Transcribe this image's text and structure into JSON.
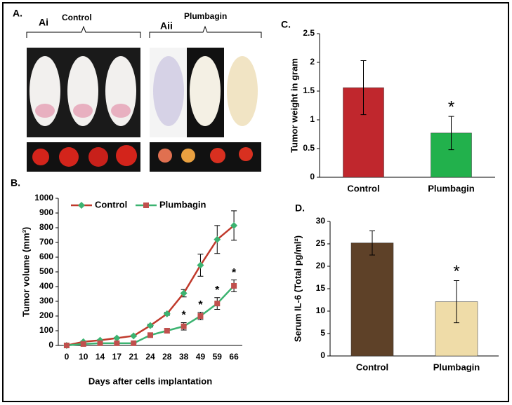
{
  "panel_a": {
    "label": "A.",
    "groups": [
      {
        "label": "Ai",
        "name": "Control"
      },
      {
        "label": "Aii",
        "name": "Plumbagin"
      }
    ]
  },
  "chart_data": [
    {
      "type": "line",
      "panel": "B.",
      "x_label": "Days after cells implantation",
      "y_label": "Tumor volume (mm³)",
      "categories": [
        "0",
        "10",
        "14",
        "17",
        "21",
        "24",
        "28",
        "38",
        "49",
        "59",
        "66"
      ],
      "series": [
        {
          "name": "Control",
          "color": "#c0392b",
          "marker_color": "#3cb371",
          "marker": "diamond",
          "values": [
            0,
            25,
            35,
            50,
            65,
            135,
            215,
            355,
            545,
            720,
            815
          ],
          "errors": [
            0,
            5,
            5,
            5,
            5,
            10,
            10,
            25,
            75,
            95,
            100
          ]
        },
        {
          "name": "Plumbagin",
          "color": "#3cb371",
          "marker_color": "#c0504d",
          "marker": "square",
          "values": [
            0,
            10,
            15,
            15,
            15,
            70,
            100,
            130,
            200,
            285,
            405
          ],
          "errors": [
            0,
            3,
            3,
            3,
            3,
            8,
            15,
            25,
            25,
            40,
            40
          ]
        }
      ],
      "ylim": [
        0,
        1000
      ],
      "yticks": [
        0,
        100,
        200,
        300,
        400,
        500,
        600,
        700,
        800,
        900,
        1000
      ],
      "legend": "top",
      "annotations": [
        {
          "text": "*",
          "category": "38"
        },
        {
          "text": "*",
          "category": "49"
        },
        {
          "text": "*",
          "category": "59"
        },
        {
          "text": "*",
          "category": "66"
        }
      ]
    },
    {
      "type": "bar",
      "panel": "C.",
      "y_label": "Tumor weight in gram",
      "categories": [
        "Control",
        "Plumbagin"
      ],
      "values": [
        1.56,
        0.77
      ],
      "errors": [
        0.47,
        0.29
      ],
      "colors": [
        "#c0272d",
        "#22b14c"
      ],
      "ylim": [
        0,
        2.5
      ],
      "yticks": [
        0,
        0.5,
        1,
        1.5,
        2,
        2.5
      ],
      "annotations": [
        {
          "text": "*",
          "category": "Plumbagin"
        }
      ]
    },
    {
      "type": "bar",
      "panel": "D.",
      "y_label": "Serum IL-6 (Total pg/ml²)",
      "categories": [
        "Control",
        "Plumbagin"
      ],
      "values": [
        25.2,
        12.1
      ],
      "errors": [
        2.7,
        4.7
      ],
      "colors": [
        "#5e4128",
        "#efdca8"
      ],
      "ylim": [
        0,
        30
      ],
      "yticks": [
        0,
        5,
        10,
        15,
        20,
        25,
        30
      ],
      "annotations": [
        {
          "text": "*",
          "category": "Plumbagin"
        }
      ]
    }
  ]
}
